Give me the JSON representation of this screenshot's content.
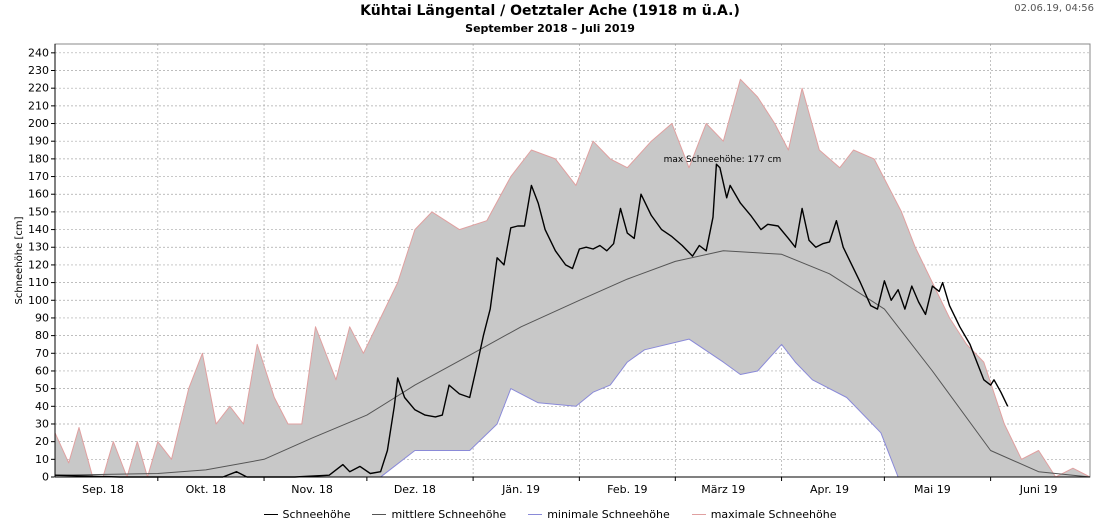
{
  "header": {
    "title": "Kühtai Längental / Oetztaler Ache (1918 m ü.A.)",
    "subtitle": "September 2018 – Juli 2019",
    "timestamp": "02.06.19, 04:56"
  },
  "colors": {
    "actual": "#000000",
    "mean": "#555555",
    "min": "#8a8ad8",
    "max": "#e0a0a0",
    "band": "#c8c8c8",
    "grid": "#a8a8a8"
  },
  "chart_data": {
    "type": "area",
    "title": "Kühtai Längental / Oetztaler Ache (1918 m ü.A.)",
    "subtitle": "September 2018 – Juli 2019",
    "ylabel": "Schneehöhe [cm]",
    "xlabel": "",
    "xlim": [
      "2018-09-01",
      "2019-06-30"
    ],
    "ylim": [
      0,
      245
    ],
    "yticks": [
      0,
      10,
      20,
      30,
      40,
      50,
      60,
      70,
      80,
      90,
      100,
      110,
      120,
      130,
      140,
      150,
      160,
      170,
      180,
      190,
      200,
      210,
      220,
      230,
      240
    ],
    "grid": true,
    "legend_position": "bottom",
    "xticks": [
      {
        "label": "Sep. 18",
        "date": "2018-09-15"
      },
      {
        "label": "Okt. 18",
        "date": "2018-10-15"
      },
      {
        "label": "Nov. 18",
        "date": "2018-11-15"
      },
      {
        "label": "Dez. 18",
        "date": "2018-12-15"
      },
      {
        "label": "Jän. 19",
        "date": "2019-01-15"
      },
      {
        "label": "Feb. 19",
        "date": "2019-02-15"
      },
      {
        "label": "März 19",
        "date": "2019-03-15"
      },
      {
        "label": "Apr. 19",
        "date": "2019-04-15"
      },
      {
        "label": "Mai 19",
        "date": "2019-05-15"
      },
      {
        "label": "Juni 19",
        "date": "2019-06-15"
      }
    ],
    "annotation": {
      "text": "max Schneehöhe: 177 cm",
      "date": "2019-03-13",
      "value": 177
    },
    "series": [
      {
        "name": "Schneehöhe",
        "color": "#000000",
        "points": [
          [
            "2018-09-01",
            1
          ],
          [
            "2018-09-20",
            0
          ],
          [
            "2018-10-20",
            0
          ],
          [
            "2018-10-24",
            3
          ],
          [
            "2018-10-27",
            0
          ],
          [
            "2018-11-10",
            0
          ],
          [
            "2018-11-20",
            1
          ],
          [
            "2018-11-24",
            7
          ],
          [
            "2018-11-26",
            3
          ],
          [
            "2018-11-29",
            6
          ],
          [
            "2018-12-02",
            2
          ],
          [
            "2018-12-05",
            3
          ],
          [
            "2018-12-07",
            15
          ],
          [
            "2018-12-09",
            40
          ],
          [
            "2018-12-10",
            56
          ],
          [
            "2018-12-12",
            45
          ],
          [
            "2018-12-15",
            38
          ],
          [
            "2018-12-18",
            35
          ],
          [
            "2018-12-21",
            34
          ],
          [
            "2018-12-23",
            35
          ],
          [
            "2018-12-25",
            52
          ],
          [
            "2018-12-28",
            47
          ],
          [
            "2018-12-31",
            45
          ],
          [
            "2019-01-02",
            62
          ],
          [
            "2019-01-04",
            80
          ],
          [
            "2019-01-06",
            95
          ],
          [
            "2019-01-08",
            124
          ],
          [
            "2019-01-10",
            120
          ],
          [
            "2019-01-12",
            141
          ],
          [
            "2019-01-14",
            142
          ],
          [
            "2019-01-16",
            142
          ],
          [
            "2019-01-18",
            165
          ],
          [
            "2019-01-20",
            155
          ],
          [
            "2019-01-22",
            140
          ],
          [
            "2019-01-25",
            128
          ],
          [
            "2019-01-28",
            120
          ],
          [
            "2019-01-30",
            118
          ],
          [
            "2019-02-01",
            129
          ],
          [
            "2019-02-03",
            130
          ],
          [
            "2019-02-05",
            129
          ],
          [
            "2019-02-07",
            131
          ],
          [
            "2019-02-09",
            128
          ],
          [
            "2019-02-11",
            132
          ],
          [
            "2019-02-13",
            152
          ],
          [
            "2019-02-15",
            138
          ],
          [
            "2019-02-17",
            135
          ],
          [
            "2019-02-19",
            160
          ],
          [
            "2019-02-22",
            148
          ],
          [
            "2019-02-25",
            140
          ],
          [
            "2019-02-28",
            136
          ],
          [
            "2019-03-03",
            131
          ],
          [
            "2019-03-06",
            125
          ],
          [
            "2019-03-08",
            131
          ],
          [
            "2019-03-10",
            128
          ],
          [
            "2019-03-12",
            147
          ],
          [
            "2019-03-13",
            177
          ],
          [
            "2019-03-14",
            175
          ],
          [
            "2019-03-16",
            158
          ],
          [
            "2019-03-17",
            165
          ],
          [
            "2019-03-20",
            155
          ],
          [
            "2019-03-23",
            148
          ],
          [
            "2019-03-26",
            140
          ],
          [
            "2019-03-28",
            143
          ],
          [
            "2019-03-31",
            142
          ],
          [
            "2019-04-03",
            135
          ],
          [
            "2019-04-05",
            130
          ],
          [
            "2019-04-07",
            152
          ],
          [
            "2019-04-09",
            134
          ],
          [
            "2019-04-11",
            130
          ],
          [
            "2019-04-13",
            132
          ],
          [
            "2019-04-15",
            133
          ],
          [
            "2019-04-17",
            145
          ],
          [
            "2019-04-19",
            130
          ],
          [
            "2019-04-21",
            122
          ],
          [
            "2019-04-24",
            110
          ],
          [
            "2019-04-27",
            97
          ],
          [
            "2019-04-29",
            95
          ],
          [
            "2019-05-01",
            111
          ],
          [
            "2019-05-03",
            100
          ],
          [
            "2019-05-05",
            106
          ],
          [
            "2019-05-07",
            95
          ],
          [
            "2019-05-09",
            108
          ],
          [
            "2019-05-11",
            99
          ],
          [
            "2019-05-13",
            92
          ],
          [
            "2019-05-15",
            108
          ],
          [
            "2019-05-17",
            105
          ],
          [
            "2019-05-18",
            110
          ],
          [
            "2019-05-20",
            97
          ],
          [
            "2019-05-23",
            85
          ],
          [
            "2019-05-26",
            75
          ],
          [
            "2019-05-28",
            65
          ],
          [
            "2019-05-30",
            55
          ],
          [
            "2019-06-01",
            52
          ],
          [
            "2019-06-02",
            55
          ],
          [
            "2019-06-04",
            48
          ],
          [
            "2019-06-06",
            40
          ]
        ]
      },
      {
        "name": "mittlere Schneehöhe",
        "color": "#555555",
        "points": [
          [
            "2018-09-01",
            1
          ],
          [
            "2018-10-01",
            2
          ],
          [
            "2018-10-15",
            4
          ],
          [
            "2018-11-01",
            10
          ],
          [
            "2018-11-15",
            22
          ],
          [
            "2018-12-01",
            35
          ],
          [
            "2018-12-15",
            52
          ],
          [
            "2019-01-01",
            70
          ],
          [
            "2019-01-15",
            85
          ],
          [
            "2019-02-01",
            100
          ],
          [
            "2019-02-15",
            112
          ],
          [
            "2019-03-01",
            122
          ],
          [
            "2019-03-15",
            128
          ],
          [
            "2019-04-01",
            126
          ],
          [
            "2019-04-15",
            115
          ],
          [
            "2019-05-01",
            95
          ],
          [
            "2019-05-15",
            60
          ],
          [
            "2019-06-01",
            15
          ],
          [
            "2019-06-15",
            3
          ],
          [
            "2019-06-30",
            0
          ]
        ]
      },
      {
        "name": "minimale Schneehöhe",
        "color": "#8a8ad8",
        "points": [
          [
            "2018-09-01",
            0
          ],
          [
            "2018-12-05",
            0
          ],
          [
            "2018-12-15",
            15
          ],
          [
            "2018-12-31",
            15
          ],
          [
            "2019-01-08",
            30
          ],
          [
            "2019-01-12",
            50
          ],
          [
            "2019-01-20",
            42
          ],
          [
            "2019-01-31",
            40
          ],
          [
            "2019-02-05",
            48
          ],
          [
            "2019-02-10",
            52
          ],
          [
            "2019-02-15",
            65
          ],
          [
            "2019-02-20",
            72
          ],
          [
            "2019-03-05",
            78
          ],
          [
            "2019-03-15",
            65
          ],
          [
            "2019-03-20",
            58
          ],
          [
            "2019-03-25",
            60
          ],
          [
            "2019-04-01",
            75
          ],
          [
            "2019-04-05",
            65
          ],
          [
            "2019-04-10",
            55
          ],
          [
            "2019-04-20",
            45
          ],
          [
            "2019-04-30",
            25
          ],
          [
            "2019-05-05",
            0
          ],
          [
            "2019-06-30",
            0
          ]
        ]
      },
      {
        "name": "maximale Schneehöhe",
        "color": "#e0a0a0",
        "points": [
          [
            "2018-09-01",
            25
          ],
          [
            "2018-09-05",
            8
          ],
          [
            "2018-09-08",
            28
          ],
          [
            "2018-09-12",
            0
          ],
          [
            "2018-09-15",
            0
          ],
          [
            "2018-09-18",
            20
          ],
          [
            "2018-09-22",
            0
          ],
          [
            "2018-09-25",
            20
          ],
          [
            "2018-09-28",
            0
          ],
          [
            "2018-10-01",
            20
          ],
          [
            "2018-10-05",
            10
          ],
          [
            "2018-10-10",
            50
          ],
          [
            "2018-10-14",
            70
          ],
          [
            "2018-10-18",
            30
          ],
          [
            "2018-10-22",
            40
          ],
          [
            "2018-10-26",
            30
          ],
          [
            "2018-10-30",
            75
          ],
          [
            "2018-11-04",
            45
          ],
          [
            "2018-11-08",
            30
          ],
          [
            "2018-11-12",
            30
          ],
          [
            "2018-11-16",
            85
          ],
          [
            "2018-11-22",
            55
          ],
          [
            "2018-11-26",
            85
          ],
          [
            "2018-11-30",
            70
          ],
          [
            "2018-12-05",
            90
          ],
          [
            "2018-12-10",
            110
          ],
          [
            "2018-12-15",
            140
          ],
          [
            "2018-12-20",
            150
          ],
          [
            "2018-12-28",
            140
          ],
          [
            "2019-01-05",
            145
          ],
          [
            "2019-01-12",
            170
          ],
          [
            "2019-01-18",
            185
          ],
          [
            "2019-01-25",
            180
          ],
          [
            "2019-01-31",
            165
          ],
          [
            "2019-02-05",
            190
          ],
          [
            "2019-02-10",
            180
          ],
          [
            "2019-02-15",
            175
          ],
          [
            "2019-02-22",
            190
          ],
          [
            "2019-02-28",
            200
          ],
          [
            "2019-03-05",
            175
          ],
          [
            "2019-03-10",
            200
          ],
          [
            "2019-03-15",
            190
          ],
          [
            "2019-03-20",
            225
          ],
          [
            "2019-03-25",
            215
          ],
          [
            "2019-03-30",
            200
          ],
          [
            "2019-04-03",
            185
          ],
          [
            "2019-04-07",
            220
          ],
          [
            "2019-04-12",
            185
          ],
          [
            "2019-04-18",
            175
          ],
          [
            "2019-04-22",
            185
          ],
          [
            "2019-04-28",
            180
          ],
          [
            "2019-05-02",
            165
          ],
          [
            "2019-05-06",
            150
          ],
          [
            "2019-05-10",
            130
          ],
          [
            "2019-05-15",
            110
          ],
          [
            "2019-05-20",
            90
          ],
          [
            "2019-05-25",
            75
          ],
          [
            "2019-05-30",
            65
          ],
          [
            "2019-06-05",
            30
          ],
          [
            "2019-06-10",
            10
          ],
          [
            "2019-06-15",
            15
          ],
          [
            "2019-06-20",
            0
          ],
          [
            "2019-06-25",
            5
          ],
          [
            "2019-06-30",
            0
          ]
        ]
      }
    ]
  }
}
